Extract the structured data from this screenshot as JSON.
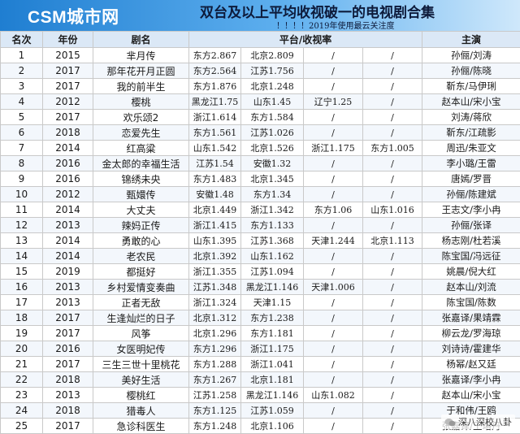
{
  "header": {
    "brand": "CSM城市网",
    "title": "双台及以上平均收视破一的电视剧合集",
    "subtitle": "！！！！2019年使用最云关注度"
  },
  "columns": {
    "rank": "名次",
    "year": "年份",
    "drama": "剧名",
    "platform": "平台/收视率",
    "cast": "主演"
  },
  "rows": [
    {
      "rank": "1",
      "year": "2015",
      "drama": "芈月传",
      "p1": "东方2.867",
      "p2": "北京2.809",
      "p3": "/",
      "p4": "/",
      "cast": "孙俪/刘涛"
    },
    {
      "rank": "2",
      "year": "2017",
      "drama": "那年花开月正圆",
      "p1": "东方2.564",
      "p2": "江苏1.756",
      "p3": "/",
      "p4": "/",
      "cast": "孙俪/陈晓"
    },
    {
      "rank": "3",
      "year": "2017",
      "drama": "我的前半生",
      "p1": "东方1.876",
      "p2": "北京1.248",
      "p3": "/",
      "p4": "/",
      "cast": "靳东/马伊琍"
    },
    {
      "rank": "4",
      "year": "2012",
      "drama": "樱桃",
      "p1": "黑龙江1.75",
      "p2": "山东1.45",
      "p3": "辽宁1.25",
      "p4": "/",
      "cast": "赵本山/宋小宝"
    },
    {
      "rank": "5",
      "year": "2017",
      "drama": "欢乐颂2",
      "p1": "浙江1.614",
      "p2": "东方1.584",
      "p3": "/",
      "p4": "/",
      "cast": "刘涛/蒋欣"
    },
    {
      "rank": "6",
      "year": "2018",
      "drama": "恋爱先生",
      "p1": "东方1.561",
      "p2": "江苏1.026",
      "p3": "/",
      "p4": "/",
      "cast": "靳东/江疏影"
    },
    {
      "rank": "7",
      "year": "2014",
      "drama": "红高粱",
      "p1": "山东1.542",
      "p2": "北京1.526",
      "p3": "浙江1.175",
      "p4": "东方1.005",
      "cast": "周迅/朱亚文"
    },
    {
      "rank": "8",
      "year": "2016",
      "drama": "金太郎的幸福生活",
      "p1": "江苏1.54",
      "p2": "安徽1.32",
      "p3": "/",
      "p4": "/",
      "cast": "李小璐/王雷"
    },
    {
      "rank": "9",
      "year": "2016",
      "drama": "锦绣未央",
      "p1": "东方1.483",
      "p2": "北京1.345",
      "p3": "/",
      "p4": "/",
      "cast": "唐嫣/罗晋"
    },
    {
      "rank": "10",
      "year": "2012",
      "drama": "甄嬛传",
      "p1": "安徽1.48",
      "p2": "东方1.34",
      "p3": "/",
      "p4": "/",
      "cast": "孙俪/陈建斌"
    },
    {
      "rank": "11",
      "year": "2014",
      "drama": "大丈夫",
      "p1": "北京1.449",
      "p2": "浙江1.342",
      "p3": "东方1.06",
      "p4": "山东1.016",
      "cast": "王志文/李小冉"
    },
    {
      "rank": "12",
      "year": "2013",
      "drama": "辣妈正传",
      "p1": "浙江1.415",
      "p2": "东方1.133",
      "p3": "/",
      "p4": "/",
      "cast": "孙俪/张译"
    },
    {
      "rank": "13",
      "year": "2014",
      "drama": "勇敢的心",
      "p1": "山东1.395",
      "p2": "江苏1.368",
      "p3": "天津1.244",
      "p4": "北京1.113",
      "cast": "杨志刚/杜若溪"
    },
    {
      "rank": "14",
      "year": "2014",
      "drama": "老农民",
      "p1": "北京1.392",
      "p2": "山东1.162",
      "p3": "/",
      "p4": "/",
      "cast": "陈宝国/冯远征"
    },
    {
      "rank": "15",
      "year": "2019",
      "drama": "都挺好",
      "p1": "浙江1.355",
      "p2": "江苏1.094",
      "p3": "/",
      "p4": "/",
      "cast": "姚晨/倪大红"
    },
    {
      "rank": "16",
      "year": "2013",
      "drama": "乡村爱情变奏曲",
      "p1": "江苏1.348",
      "p2": "黑龙江1.146",
      "p3": "天津1.006",
      "p4": "/",
      "cast": "赵本山/刘流"
    },
    {
      "rank": "17",
      "year": "2013",
      "drama": "正者无敌",
      "p1": "浙江1.324",
      "p2": "天津1.15",
      "p3": "/",
      "p4": "/",
      "cast": "陈宝国/陈数"
    },
    {
      "rank": "18",
      "year": "2017",
      "drama": "生逢灿烂的日子",
      "p1": "北京1.312",
      "p2": "东方1.238",
      "p3": "/",
      "p4": "/",
      "cast": "张嘉译/果靖霖"
    },
    {
      "rank": "19",
      "year": "2017",
      "drama": "风筝",
      "p1": "北京1.296",
      "p2": "东方1.181",
      "p3": "/",
      "p4": "/",
      "cast": "柳云龙/罗海琼"
    },
    {
      "rank": "20",
      "year": "2016",
      "drama": "女医明妃传",
      "p1": "东方1.296",
      "p2": "浙江1.175",
      "p3": "/",
      "p4": "/",
      "cast": "刘诗诗/霍建华"
    },
    {
      "rank": "21",
      "year": "2017",
      "drama": "三生三世十里桃花",
      "p1": "东方1.288",
      "p2": "浙江1.041",
      "p3": "/",
      "p4": "/",
      "cast": "杨幂/赵又廷"
    },
    {
      "rank": "22",
      "year": "2018",
      "drama": "美好生活",
      "p1": "东方1.267",
      "p2": "北京1.181",
      "p3": "/",
      "p4": "/",
      "cast": "张嘉译/李小冉"
    },
    {
      "rank": "23",
      "year": "2013",
      "drama": "樱桃红",
      "p1": "江苏1.258",
      "p2": "黑龙江1.146",
      "p3": "山东1.082",
      "p4": "/",
      "cast": "赵本山/宋小宝"
    },
    {
      "rank": "24",
      "year": "2018",
      "drama": "猎毒人",
      "p1": "东方1.125",
      "p2": "江苏1.059",
      "p3": "/",
      "p4": "/",
      "cast": "于和伟/王鸥"
    },
    {
      "rank": "25",
      "year": "2017",
      "drama": "急诊科医生",
      "p1": "东方1.248",
      "p2": "北京1.106",
      "p3": "/",
      "p4": "/",
      "cast": "张嘉译/王珞丹"
    }
  ],
  "watermark": "深八深校八卦",
  "icons": {
    "watermark_icon": "chat-bubble-icon"
  }
}
